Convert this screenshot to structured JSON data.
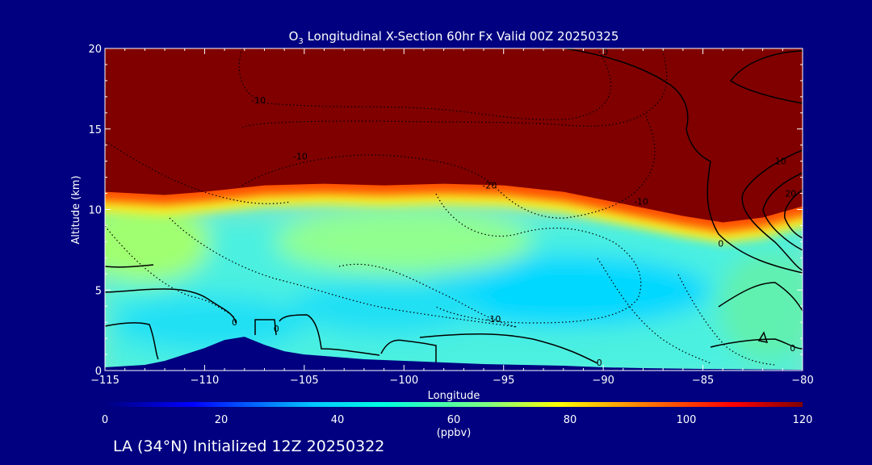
{
  "chart_data": {
    "type": "heatmap",
    "title_prefix": "O",
    "title_sub": "3",
    "title_rest": " Longitudinal X-Section 60hr  Fx Valid 00Z 20250325",
    "xlabel": "Longitude",
    "ylabel": "Altitude (km)",
    "xlim": [
      -115,
      -80
    ],
    "ylim": [
      0,
      20
    ],
    "xticks": [
      -115,
      -110,
      -105,
      -100,
      -95,
      -90,
      -85,
      -80
    ],
    "xtick_labels": [
      "−115",
      "−110",
      "−105",
      "−100",
      "−95",
      "−90",
      "−85",
      "−80"
    ],
    "yticks": [
      0,
      5,
      10,
      15,
      20
    ],
    "ytick_labels": [
      "0",
      "5",
      "10",
      "15",
      "20"
    ],
    "colorbar": {
      "min": 0,
      "max": 120,
      "ticks": [
        0,
        20,
        40,
        60,
        80,
        100,
        120
      ],
      "tick_labels": [
        "0",
        "20",
        "40",
        "60",
        "80",
        "100",
        "120"
      ],
      "unit_label": "(ppbv)"
    },
    "tropopause_height_km": [
      [
        -115,
        11.1
      ],
      [
        -112,
        10.9
      ],
      [
        -110,
        11.1
      ],
      [
        -107,
        11.5
      ],
      [
        -104,
        11.6
      ],
      [
        -101,
        11.5
      ],
      [
        -98,
        11.6
      ],
      [
        -95,
        11.5
      ],
      [
        -92,
        11.1
      ],
      [
        -90,
        10.6
      ],
      [
        -88,
        10.1
      ],
      [
        -86,
        9.6
      ],
      [
        -84,
        9.2
      ],
      [
        -82,
        9.5
      ],
      [
        -80,
        10.2
      ]
    ],
    "terrain_height_km": [
      [
        -115,
        0.2
      ],
      [
        -113,
        0.35
      ],
      [
        -112,
        0.6
      ],
      [
        -110,
        1.4
      ],
      [
        -109,
        1.9
      ],
      [
        -108,
        2.1
      ],
      [
        -107,
        1.6
      ],
      [
        -106,
        1.2
      ],
      [
        -105,
        1.0
      ],
      [
        -104,
        0.9
      ],
      [
        -102,
        0.7
      ],
      [
        -100,
        0.6
      ],
      [
        -98,
        0.5
      ],
      [
        -96,
        0.4
      ],
      [
        -94,
        0.35
      ],
      [
        -92,
        0.3
      ],
      [
        -90,
        0.2
      ],
      [
        -88,
        0.15
      ],
      [
        -85,
        0.1
      ],
      [
        -80,
        0.05
      ]
    ],
    "contour_labels": [
      {
        "text": "-10",
        "lon": -107.3,
        "alt": 16.6
      },
      {
        "text": "-10",
        "lon": -105.2,
        "alt": 13.1
      },
      {
        "text": "-20",
        "lon": -95.7,
        "alt": 11.3
      },
      {
        "text": "-10",
        "lon": -88.1,
        "alt": 10.3
      },
      {
        "text": "-10",
        "lon": -95.5,
        "alt": 3.0
      },
      {
        "text": "0",
        "lon": -89.9,
        "alt": 19.6
      },
      {
        "text": "0",
        "lon": -84.1,
        "alt": 7.7
      },
      {
        "text": "10",
        "lon": -81.1,
        "alt": 12.8
      },
      {
        "text": "20",
        "lon": -80.6,
        "alt": 10.8
      },
      {
        "text": "0",
        "lon": -90.2,
        "alt": 0.3
      },
      {
        "text": "0",
        "lon": -80.5,
        "alt": 1.2
      },
      {
        "text": "0",
        "lon": -108.5,
        "alt": 2.8
      },
      {
        "text": "0",
        "lon": -106.4,
        "alt": 2.4
      }
    ]
  },
  "footer": "LA (34°N) Initialized 12Z 20250322",
  "colors": {
    "background": "#000080",
    "terrain": "#000080",
    "stratosphere": "#800000"
  }
}
